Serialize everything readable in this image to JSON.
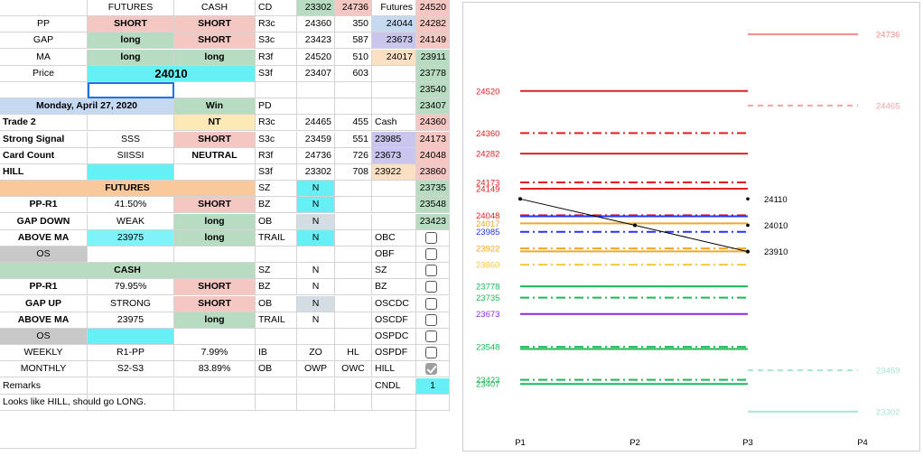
{
  "sheet": {
    "header": {
      "futures": "FUTURES",
      "cash": "CASH"
    },
    "rows_top": [
      {
        "label": "PP",
        "futures": "SHORT",
        "cash": "SHORT"
      },
      {
        "label": "GAP",
        "futures": "long",
        "cash": "SHORT"
      },
      {
        "label": "MA",
        "futures": "long",
        "cash": "long"
      }
    ],
    "price_label": "Price",
    "price_value": "24010",
    "date": "Monday, April 27, 2020",
    "win": "Win",
    "trade": {
      "label": "Trade 2",
      "value": "NT"
    },
    "signal": {
      "label": "Strong Signal",
      "futures": "SSS",
      "cash": "SHORT"
    },
    "card": {
      "label": "Card Count",
      "futures": "SIISSI",
      "cash": "NEUTRAL"
    },
    "hill": "HILL",
    "futures_section": {
      "title": "FUTURES",
      "rows": [
        {
          "label": "PP-R1",
          "value": "41.50%",
          "signal": "SHORT"
        },
        {
          "label": "GAP DOWN",
          "value": "WEAK",
          "signal": "long"
        },
        {
          "label": "ABOVE MA",
          "value": "23975",
          "signal": "long"
        }
      ],
      "os": "OS"
    },
    "cash_section": {
      "title": "CASH",
      "rows": [
        {
          "label": "PP-R1",
          "value": "79.95%",
          "signal": "SHORT"
        },
        {
          "label": "GAP UP",
          "value": "STRONG",
          "signal": "SHORT"
        },
        {
          "label": "ABOVE MA",
          "value": "23975",
          "signal": "long"
        }
      ],
      "os": "OS"
    },
    "weekly": {
      "label": "WEEKLY",
      "range": "R1-PP",
      "pct": "7.99%"
    },
    "monthly": {
      "label": "MONTHLY",
      "range": "S2-S3",
      "pct": "83.89%"
    },
    "remarks_label": "Remarks",
    "remarks_text": "Looks like HILL, should go LONG.",
    "cd_block": [
      {
        "k": "CD",
        "a": "23302",
        "b": "24736",
        "c": "Futures",
        "d": "24520"
      },
      {
        "k": "R3c",
        "a": "24360",
        "b": "350",
        "c": "24044",
        "d": "24282"
      },
      {
        "k": "S3c",
        "a": "23423",
        "b": "587",
        "c": "23673",
        "d": "24149"
      },
      {
        "k": "R3f",
        "a": "24520",
        "b": "510",
        "c": "24017",
        "d": "23911"
      },
      {
        "k": "S3f",
        "a": "23407",
        "b": "603",
        "c": "",
        "d": "23778"
      }
    ],
    "col_e_extra": [
      "23540",
      "23407"
    ],
    "pd_block": [
      {
        "k": "PD",
        "a": "",
        "b": "",
        "c": "",
        "d": ""
      },
      {
        "k": "R3c",
        "a": "24465",
        "b": "455",
        "c": "Cash",
        "d": "24360"
      },
      {
        "k": "S3c",
        "a": "23459",
        "b": "551",
        "c": "23985",
        "d": "24173"
      },
      {
        "k": "R3f",
        "a": "24736",
        "b": "726",
        "c": "23673",
        "d": "24048"
      },
      {
        "k": "S3f",
        "a": "23302",
        "b": "708",
        "c": "23922",
        "d": "23860"
      }
    ],
    "futures_side": [
      {
        "k": "SZ",
        "v": "N",
        "e": "23735"
      },
      {
        "k": "BZ",
        "v": "N",
        "e": "23548"
      },
      {
        "k": "OB",
        "v": "N",
        "e": "23423"
      },
      {
        "k": "TRAIL",
        "v": "N",
        "e": ""
      }
    ],
    "cash_side": [
      {
        "k": "SZ",
        "v": "N"
      },
      {
        "k": "BZ",
        "v": "N"
      },
      {
        "k": "OB",
        "v": "N"
      },
      {
        "k": "TRAIL",
        "v": "N"
      }
    ],
    "checks": [
      {
        "label": "OBC",
        "checked": false
      },
      {
        "label": "OBF",
        "checked": false
      },
      {
        "label": "SZ",
        "checked": false
      },
      {
        "label": "BZ",
        "checked": false
      },
      {
        "label": "OSCDC",
        "checked": false
      },
      {
        "label": "OSCDF",
        "checked": false
      },
      {
        "label": "OSPDC",
        "checked": false
      },
      {
        "label": "OSPDF",
        "checked": false
      },
      {
        "label": "HILL",
        "checked": true
      }
    ],
    "weekly_side": {
      "a": "IB",
      "b": "ZO",
      "c": "HL"
    },
    "monthly_side": {
      "a": "OB",
      "b": "OWP",
      "c": "OWC"
    },
    "cndl": {
      "label": "CNDL",
      "value": "1"
    }
  },
  "chart_data": {
    "type": "line",
    "categories": [
      "P1",
      "P2",
      "P3",
      "P4"
    ],
    "ylim": [
      23250,
      24780
    ],
    "levels": [
      {
        "value": 24736,
        "label": "24736",
        "color": "#f28b8b",
        "style": "solid",
        "from": "P3",
        "to": "P4",
        "labelSide": "right"
      },
      {
        "value": 24520,
        "label": "24520",
        "color": "#e02020",
        "style": "solid",
        "from": "P1",
        "to": "P3",
        "labelSide": "left"
      },
      {
        "value": 24465,
        "label": "24465",
        "color": "#f4a3a3",
        "style": "dash",
        "from": "P3",
        "to": "P4",
        "labelSide": "right"
      },
      {
        "value": 24360,
        "label": "24360",
        "color": "#e02020",
        "style": "dashdot",
        "from": "P1",
        "to": "P3",
        "labelSide": "left"
      },
      {
        "value": 24282,
        "label": "24282",
        "color": "#e02020",
        "style": "solid",
        "from": "P1",
        "to": "P3",
        "labelSide": "left"
      },
      {
        "value": 24173,
        "label": "24173",
        "color": "#e02020",
        "style": "dashdot",
        "from": "P1",
        "to": "P3",
        "labelSide": "left"
      },
      {
        "value": 24149,
        "label": "24149",
        "color": "#e02020",
        "style": "solid",
        "from": "P1",
        "to": "P3",
        "labelSide": "left"
      },
      {
        "value": 24048,
        "label": "24048",
        "color": "#e02020",
        "style": "dashdot",
        "from": "P1",
        "to": "P3",
        "labelSide": "left"
      },
      {
        "value": 24044,
        "label": "",
        "color": "#2233ff",
        "style": "solid",
        "from": "P1",
        "to": "P3",
        "labelSide": "left"
      },
      {
        "value": 24017,
        "label": "24017",
        "color": "#f5a623",
        "style": "solid",
        "from": "P1",
        "to": "P3",
        "labelSide": "left"
      },
      {
        "value": 23985,
        "label": "23985",
        "color": "#2233ff",
        "style": "dashdot",
        "from": "P1",
        "to": "P3",
        "labelSide": "left"
      },
      {
        "value": 23922,
        "label": "23922",
        "color": "#f5a623",
        "style": "dashdot",
        "from": "P1",
        "to": "P3",
        "labelSide": "left"
      },
      {
        "value": 23911,
        "label": "",
        "color": "#f5a623",
        "style": "solid",
        "from": "P1",
        "to": "P3",
        "labelSide": "left"
      },
      {
        "value": 23860,
        "label": "23860",
        "color": "#f5c842",
        "style": "dashdot",
        "from": "P1",
        "to": "P3",
        "labelSide": "left"
      },
      {
        "value": 23778,
        "label": "23778",
        "color": "#1db954",
        "style": "solid",
        "from": "P1",
        "to": "P3",
        "labelSide": "left"
      },
      {
        "value": 23735,
        "label": "23735",
        "color": "#1db954",
        "style": "dashdot",
        "from": "P1",
        "to": "P3",
        "labelSide": "left"
      },
      {
        "value": 23673,
        "label": "23673",
        "color": "#8a2be2",
        "style": "solid",
        "from": "P1",
        "to": "P3",
        "labelSide": "left"
      },
      {
        "value": 23548,
        "label": "23548",
        "color": "#1db954",
        "style": "dashdot",
        "from": "P1",
        "to": "P3",
        "labelSide": "left"
      },
      {
        "value": 23540,
        "label": "",
        "color": "#1db954",
        "style": "solid",
        "from": "P1",
        "to": "P3",
        "labelSide": "left"
      },
      {
        "value": 23459,
        "label": "23459",
        "color": "#a8e6cf",
        "style": "dash",
        "from": "P3",
        "to": "P4",
        "labelSide": "right"
      },
      {
        "value": 23423,
        "label": "23423",
        "color": "#1db954",
        "style": "dashdot",
        "from": "P1",
        "to": "P3",
        "labelSide": "left"
      },
      {
        "value": 23407,
        "label": "23407",
        "color": "#1db954",
        "style": "solid",
        "from": "P1",
        "to": "P3",
        "labelSide": "left"
      },
      {
        "value": 23302,
        "label": "23302",
        "color": "#a8e6cf",
        "style": "solid",
        "from": "P3",
        "to": "P4",
        "labelSide": "right"
      }
    ],
    "price_series": [
      {
        "x": "P1",
        "y": 24110
      },
      {
        "x": "P2",
        "y": 24010
      },
      {
        "x": "P3",
        "y": 23910
      }
    ],
    "price_markers": [
      {
        "x": "P3",
        "y": 24110,
        "label": "24110"
      },
      {
        "x": "P3",
        "y": 24010,
        "label": "24010"
      },
      {
        "x": "P3",
        "y": 23910,
        "label": "23910"
      }
    ],
    "grid": false
  }
}
